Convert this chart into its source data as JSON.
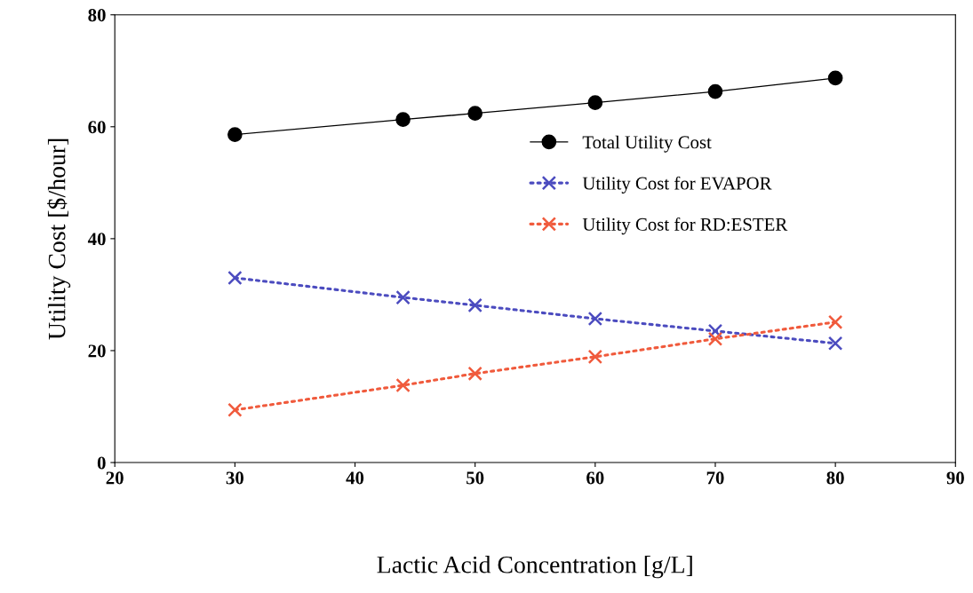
{
  "chart_data": {
    "type": "line",
    "xlabel": "Lactic Acid Concentration [g/L]",
    "ylabel": "Utility Cost [$/hour]",
    "x": [
      30,
      44,
      50,
      60,
      70,
      80
    ],
    "series": [
      {
        "name": "Total Utility Cost",
        "color": "#000000",
        "values": [
          58.6,
          61.3,
          62.4,
          64.3,
          66.3,
          68.7
        ],
        "marker": "circle",
        "line_style": "solid"
      },
      {
        "name": "Utility Cost for EVAPOR",
        "color": "#4b4bbf",
        "values": [
          33.0,
          29.5,
          28.1,
          25.7,
          23.5,
          21.3
        ],
        "marker": "cross",
        "line_style": "dotted"
      },
      {
        "name": "Utility Cost for RD:ESTER",
        "color": "#f05a3c",
        "values": [
          9.4,
          13.8,
          15.9,
          18.9,
          22.1,
          25.1
        ],
        "marker": "cross",
        "line_style": "dotted"
      }
    ],
    "xlim": [
      20,
      90
    ],
    "xticks": [
      20,
      30,
      40,
      50,
      60,
      70,
      80,
      90
    ],
    "ylim": [
      0,
      80
    ],
    "yticks": [
      0,
      20,
      40,
      60,
      80
    ],
    "grid": false,
    "legend": "right"
  }
}
